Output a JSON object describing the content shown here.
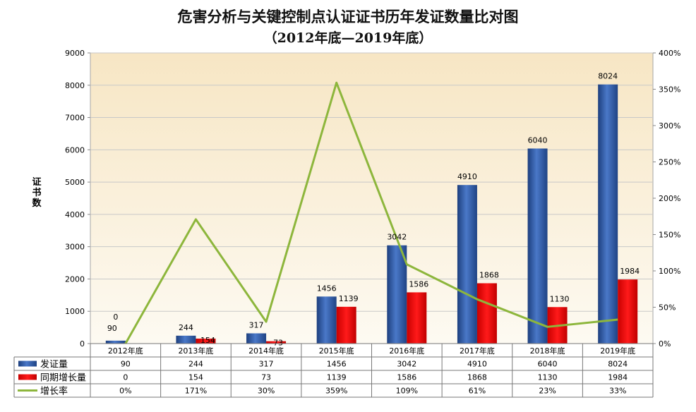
{
  "chart_data": {
    "type": "bar",
    "title": "危害分析与关键控制点认证证书历年发证数量比对图",
    "subtitle": "（2012年底—2019年底）",
    "ylabel": "证书数",
    "categories": [
      "2012年底",
      "2013年底",
      "2014年底",
      "2015年底",
      "2016年底",
      "2017年底",
      "2018年底",
      "2019年底"
    ],
    "series": [
      {
        "name": "发证量",
        "type": "bar",
        "color": "#2f5aa8",
        "values": [
          90,
          244,
          317,
          1456,
          3042,
          4910,
          6040,
          8024
        ]
      },
      {
        "name": "同期增长量",
        "type": "bar",
        "color": "#e60000",
        "values": [
          0,
          154,
          73,
          1139,
          1586,
          1868,
          1130,
          1984
        ]
      },
      {
        "name": "增长率",
        "type": "line",
        "axis": "right",
        "color": "#8db63c",
        "values": [
          0,
          171,
          30,
          359,
          109,
          61,
          23,
          33
        ]
      }
    ],
    "y_left": {
      "min": 0,
      "max": 9000,
      "step": 1000,
      "ticks": [
        "0",
        "1000",
        "2000",
        "3000",
        "4000",
        "5000",
        "6000",
        "7000",
        "8000",
        "9000"
      ]
    },
    "y_right": {
      "min": 0,
      "max": 400,
      "step": 50,
      "ticks": [
        "0%",
        "50%",
        "100%",
        "150%",
        "200%",
        "250%",
        "300%",
        "350%",
        "400%"
      ]
    },
    "table": {
      "rows": [
        {
          "label": "发证量",
          "cells": [
            "90",
            "244",
            "317",
            "1456",
            "3042",
            "4910",
            "6040",
            "8024"
          ]
        },
        {
          "label": "同期增长量",
          "cells": [
            "0",
            "154",
            "73",
            "1139",
            "1586",
            "1868",
            "1130",
            "1984"
          ]
        },
        {
          "label": "增长率",
          "cells": [
            "0%",
            "171%",
            "30%",
            "359%",
            "109%",
            "61%",
            "23%",
            "33%"
          ]
        }
      ]
    },
    "bar_labels": {
      "issued": [
        "90",
        "244",
        "317",
        "1456",
        "3042",
        "4910",
        "6040",
        "8024"
      ],
      "growth": [
        "0",
        "154",
        "73",
        "1139",
        "1586",
        "1868",
        "1130",
        "1984"
      ]
    },
    "background": {
      "top": "#f7e6c4",
      "bottom": "#fdfaf2"
    },
    "grid": true
  }
}
